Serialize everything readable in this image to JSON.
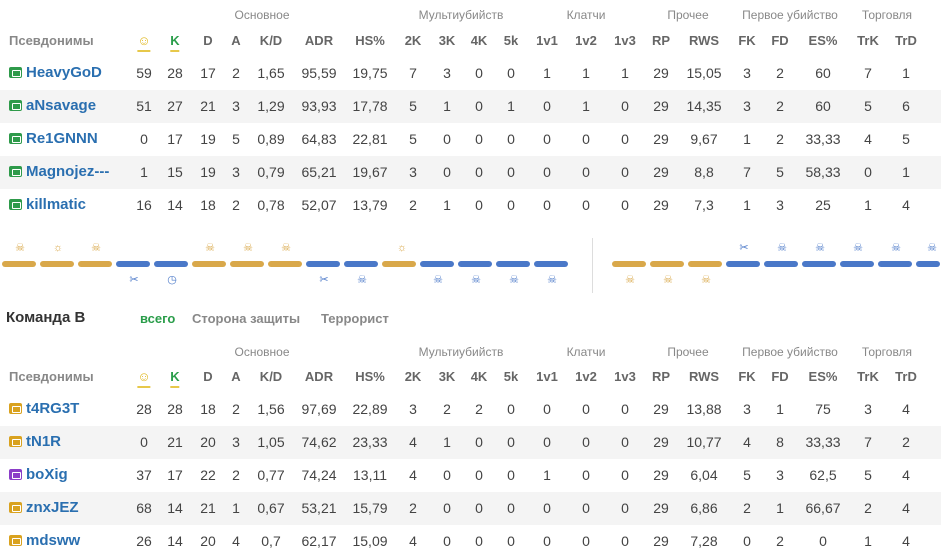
{
  "groups": [
    "Основное",
    "Мультиубийств",
    "Клатчи",
    "Прочее",
    "Первое убийство",
    "Торговля"
  ],
  "headers": {
    "nick": "Псевдонимы",
    "smile": "☺",
    "k": "K",
    "d": "D",
    "a": "A",
    "kd": "K/D",
    "adr": "ADR",
    "hs": "HS%",
    "k2": "2K",
    "k3": "3K",
    "k4": "4K",
    "k5": "5k",
    "c1": "1v1",
    "c2": "1v2",
    "c3": "1v3",
    "rp": "RP",
    "rws": "RWS",
    "fk": "FK",
    "fd": "FD",
    "es": "ES%",
    "trk": "TrK",
    "trd": "TrD"
  },
  "teamA": {
    "players": [
      {
        "name": "HeavyGoD",
        "side": "ct",
        "cells": [
          "59",
          "28",
          "17",
          "2",
          "1,65",
          "95,59",
          "19,75",
          "7",
          "3",
          "0",
          "0",
          "1",
          "1",
          "1",
          "29",
          "15,05",
          "3",
          "2",
          "60",
          "7",
          "1"
        ]
      },
      {
        "name": "aNsavage",
        "side": "ct",
        "cells": [
          "51",
          "27",
          "21",
          "3",
          "1,29",
          "93,93",
          "17,78",
          "5",
          "1",
          "0",
          "1",
          "0",
          "1",
          "0",
          "29",
          "14,35",
          "3",
          "2",
          "60",
          "5",
          "6"
        ]
      },
      {
        "name": "Re1GNNN",
        "side": "ct",
        "cells": [
          "0",
          "17",
          "19",
          "5",
          "0,89",
          "64,83",
          "22,81",
          "5",
          "0",
          "0",
          "0",
          "0",
          "0",
          "0",
          "29",
          "9,67",
          "1",
          "2",
          "33,33",
          "4",
          "5"
        ]
      },
      {
        "name": "Magnojez---",
        "side": "ct",
        "cells": [
          "1",
          "15",
          "19",
          "3",
          "0,79",
          "65,21",
          "19,67",
          "3",
          "0",
          "0",
          "0",
          "0",
          "0",
          "0",
          "29",
          "8,8",
          "7",
          "5",
          "58,33",
          "0",
          "1"
        ]
      },
      {
        "name": "killmatic",
        "side": "ct",
        "cells": [
          "16",
          "14",
          "18",
          "2",
          "0,78",
          "52,07",
          "13,79",
          "2",
          "1",
          "0",
          "0",
          "0",
          "0",
          "0",
          "29",
          "7,3",
          "1",
          "3",
          "25",
          "1",
          "4"
        ]
      }
    ]
  },
  "teamB": {
    "title": "Команда B",
    "tabs": [
      "всего",
      "Сторона защиты",
      "Террорист"
    ],
    "players": [
      {
        "name": "t4RG3T",
        "side": "t",
        "cells": [
          "28",
          "28",
          "18",
          "2",
          "1,56",
          "97,69",
          "22,89",
          "3",
          "2",
          "2",
          "0",
          "0",
          "0",
          "0",
          "29",
          "13,88",
          "3",
          "1",
          "75",
          "3",
          "4"
        ]
      },
      {
        "name": "tN1R",
        "side": "t",
        "cells": [
          "0",
          "21",
          "20",
          "3",
          "1,05",
          "74,62",
          "23,33",
          "4",
          "1",
          "0",
          "0",
          "0",
          "0",
          "0",
          "29",
          "10,77",
          "4",
          "8",
          "33,33",
          "7",
          "2"
        ]
      },
      {
        "name": "boXig",
        "side": "pr",
        "cells": [
          "37",
          "17",
          "22",
          "2",
          "0,77",
          "74,24",
          "13,11",
          "4",
          "0",
          "0",
          "0",
          "1",
          "0",
          "0",
          "29",
          "6,04",
          "5",
          "3",
          "62,5",
          "5",
          "4"
        ]
      },
      {
        "name": "znxJEZ",
        "side": "t",
        "cells": [
          "68",
          "14",
          "21",
          "1",
          "0,67",
          "53,21",
          "15,79",
          "2",
          "0",
          "0",
          "0",
          "0",
          "0",
          "0",
          "29",
          "6,86",
          "2",
          "1",
          "66,67",
          "2",
          "4"
        ]
      },
      {
        "name": "mdsww",
        "side": "t",
        "cells": [
          "26",
          "14",
          "20",
          "4",
          "0,7",
          "62,17",
          "15,09",
          "4",
          "0",
          "0",
          "0",
          "0",
          "0",
          "0",
          "29",
          "7,28",
          "0",
          "2",
          "0",
          "1",
          "4"
        ]
      }
    ]
  },
  "timeline": {
    "icons_top": [
      {
        "side": "t",
        "icon": "skull-icon"
      },
      {
        "side": "t",
        "icon": "sun-icon"
      },
      {
        "side": "t",
        "icon": "skull-icon"
      },
      {
        "side": "t",
        "icon": "skull-icon"
      },
      {
        "side": "t",
        "icon": "skull-icon"
      },
      {
        "side": "t",
        "icon": "skull-icon"
      },
      {
        "side": "t",
        "icon": "sun-icon"
      },
      {
        "side": "ct",
        "icon": "scissors-icon"
      },
      {
        "side": "ct",
        "icon": "skull-icon"
      },
      {
        "side": "ct",
        "icon": "skull-icon"
      },
      {
        "side": "ct",
        "icon": "skull-icon"
      },
      {
        "side": "ct",
        "icon": "skull-icon"
      },
      {
        "side": "ct",
        "icon": "skull-icon"
      }
    ]
  }
}
